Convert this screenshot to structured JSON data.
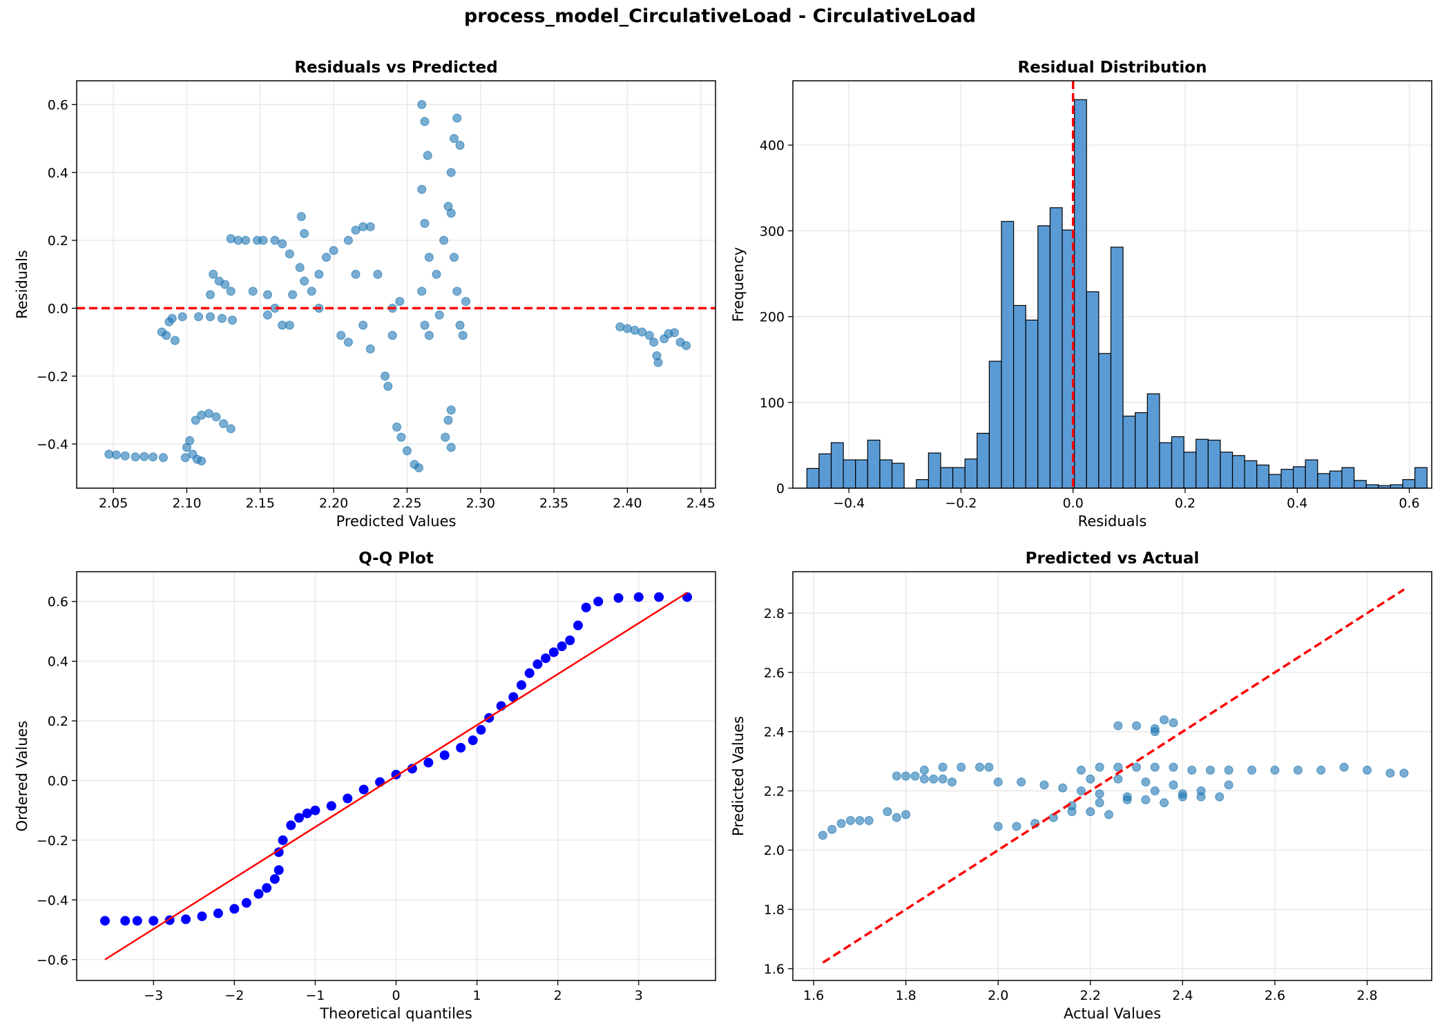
{
  "figure": {
    "title": "process_model_CirculativeLoad - CirculativeLoad"
  },
  "colors": {
    "scatter": "#1f77b4",
    "hist_fill": "#5b9bd5",
    "hist_edge": "#000000",
    "reference_line": "#ff0000",
    "qq_points": "#0000ff",
    "grid": "#e6e6e6"
  },
  "chart_data": [
    {
      "id": "residuals-vs-predicted",
      "type": "scatter",
      "title": "Residuals vs Predicted",
      "xlabel": "Predicted Values",
      "ylabel": "Residuals",
      "xlim": [
        2.025,
        2.46
      ],
      "ylim": [
        -0.53,
        0.67
      ],
      "xticks": [
        2.05,
        2.1,
        2.15,
        2.2,
        2.25,
        2.3,
        2.35,
        2.4,
        2.45
      ],
      "yticks": [
        -0.4,
        -0.2,
        0.0,
        0.2,
        0.4,
        0.6
      ],
      "grid": true,
      "reference_line": {
        "orientation": "horizontal",
        "y": 0.0,
        "style": "dashed"
      },
      "points": [
        [
          2.047,
          -0.43
        ],
        [
          2.052,
          -0.432
        ],
        [
          2.058,
          -0.435
        ],
        [
          2.065,
          -0.438
        ],
        [
          2.071,
          -0.437
        ],
        [
          2.077,
          -0.438
        ],
        [
          2.084,
          -0.44
        ],
        [
          2.083,
          -0.07
        ],
        [
          2.086,
          -0.08
        ],
        [
          2.088,
          -0.04
        ],
        [
          2.09,
          -0.03
        ],
        [
          2.092,
          -0.095
        ],
        [
          2.097,
          -0.025
        ],
        [
          2.099,
          -0.44
        ],
        [
          2.1,
          -0.41
        ],
        [
          2.102,
          -0.39
        ],
        [
          2.104,
          -0.43
        ],
        [
          2.107,
          -0.445
        ],
        [
          2.11,
          -0.45
        ],
        [
          2.106,
          -0.33
        ],
        [
          2.11,
          -0.315
        ],
        [
          2.115,
          -0.31
        ],
        [
          2.12,
          -0.32
        ],
        [
          2.125,
          -0.34
        ],
        [
          2.13,
          -0.355
        ],
        [
          2.108,
          -0.025
        ],
        [
          2.116,
          -0.025
        ],
        [
          2.124,
          -0.03
        ],
        [
          2.131,
          -0.035
        ],
        [
          2.116,
          0.04
        ],
        [
          2.118,
          0.1
        ],
        [
          2.122,
          0.08
        ],
        [
          2.126,
          0.07
        ],
        [
          2.13,
          0.05
        ],
        [
          2.13,
          0.205
        ],
        [
          2.135,
          0.2
        ],
        [
          2.14,
          0.2
        ],
        [
          2.145,
          0.05
        ],
        [
          2.148,
          0.2
        ],
        [
          2.152,
          0.2
        ],
        [
          2.155,
          -0.02
        ],
        [
          2.16,
          0.2
        ],
        [
          2.165,
          0.19
        ],
        [
          2.17,
          0.16
        ],
        [
          2.172,
          0.04
        ],
        [
          2.155,
          0.04
        ],
        [
          2.16,
          0.0
        ],
        [
          2.165,
          -0.05
        ],
        [
          2.17,
          -0.05
        ],
        [
          2.178,
          0.27
        ],
        [
          2.18,
          0.22
        ],
        [
          2.177,
          0.12
        ],
        [
          2.18,
          0.08
        ],
        [
          2.185,
          0.05
        ],
        [
          2.19,
          0.1
        ],
        [
          2.19,
          0.0
        ],
        [
          2.195,
          0.15
        ],
        [
          2.2,
          0.17
        ],
        [
          2.205,
          -0.08
        ],
        [
          2.21,
          0.2
        ],
        [
          2.215,
          0.23
        ],
        [
          2.22,
          0.24
        ],
        [
          2.225,
          0.24
        ],
        [
          2.21,
          -0.1
        ],
        [
          2.215,
          0.1
        ],
        [
          2.22,
          -0.05
        ],
        [
          2.225,
          -0.12
        ],
        [
          2.23,
          0.1
        ],
        [
          2.235,
          -0.2
        ],
        [
          2.237,
          -0.23
        ],
        [
          2.24,
          0.0
        ],
        [
          2.24,
          -0.08
        ],
        [
          2.245,
          0.02
        ],
        [
          2.25,
          -0.42
        ],
        [
          2.255,
          -0.46
        ],
        [
          2.258,
          -0.47
        ],
        [
          2.243,
          -0.35
        ],
        [
          2.246,
          -0.38
        ],
        [
          2.26,
          0.6
        ],
        [
          2.262,
          0.55
        ],
        [
          2.264,
          0.45
        ],
        [
          2.26,
          0.35
        ],
        [
          2.262,
          0.25
        ],
        [
          2.265,
          0.15
        ],
        [
          2.26,
          0.05
        ],
        [
          2.262,
          -0.05
        ],
        [
          2.265,
          -0.08
        ],
        [
          2.27,
          0.1
        ],
        [
          2.272,
          -0.02
        ],
        [
          2.275,
          0.2
        ],
        [
          2.278,
          0.3
        ],
        [
          2.28,
          0.4
        ],
        [
          2.282,
          0.5
        ],
        [
          2.284,
          0.56
        ],
        [
          2.286,
          0.48
        ],
        [
          2.28,
          0.28
        ],
        [
          2.282,
          0.15
        ],
        [
          2.284,
          0.05
        ],
        [
          2.286,
          -0.05
        ],
        [
          2.288,
          -0.08
        ],
        [
          2.29,
          0.02
        ],
        [
          2.276,
          -0.38
        ],
        [
          2.278,
          -0.33
        ],
        [
          2.28,
          -0.3
        ],
        [
          2.28,
          -0.41
        ],
        [
          2.395,
          -0.055
        ],
        [
          2.4,
          -0.06
        ],
        [
          2.405,
          -0.065
        ],
        [
          2.41,
          -0.07
        ],
        [
          2.415,
          -0.08
        ],
        [
          2.418,
          -0.1
        ],
        [
          2.42,
          -0.14
        ],
        [
          2.421,
          -0.16
        ],
        [
          2.425,
          -0.09
        ],
        [
          2.428,
          -0.075
        ],
        [
          2.432,
          -0.072
        ],
        [
          2.436,
          -0.1
        ],
        [
          2.44,
          -0.11
        ]
      ]
    },
    {
      "id": "residual-distribution",
      "type": "histogram",
      "title": "Residual Distribution",
      "xlabel": "Residuals",
      "ylabel": "Frequency",
      "xlim": [
        -0.5,
        0.64
      ],
      "ylim": [
        0,
        475
      ],
      "xticks": [
        -0.4,
        -0.2,
        0.0,
        0.2,
        0.4,
        0.6
      ],
      "yticks": [
        0,
        100,
        200,
        300,
        400
      ],
      "grid": true,
      "reference_line": {
        "orientation": "vertical",
        "x": 0.0,
        "style": "dashed"
      },
      "bin_start": -0.475,
      "bin_width": 0.0217,
      "counts": [
        23,
        40,
        53,
        33,
        33,
        56,
        33,
        29,
        0,
        10,
        41,
        24,
        24,
        34,
        64,
        148,
        311,
        213,
        196,
        306,
        327,
        301,
        453,
        229,
        157,
        281,
        84,
        88,
        110,
        53,
        60,
        42,
        57,
        56,
        42,
        38,
        32,
        27,
        16,
        22,
        25,
        33,
        17,
        20,
        24,
        9,
        4,
        3,
        4,
        10,
        24
      ]
    },
    {
      "id": "qq-plot",
      "type": "scatter",
      "title": "Q-Q Plot",
      "xlabel": "Theoretical quantiles",
      "ylabel": "Ordered Values",
      "xlim": [
        -3.95,
        3.95
      ],
      "ylim": [
        -0.67,
        0.7
      ],
      "xticks": [
        -3,
        -2,
        -1,
        0,
        1,
        2,
        3
      ],
      "yticks": [
        -0.6,
        -0.4,
        -0.2,
        0.0,
        0.2,
        0.4,
        0.6
      ],
      "grid": true,
      "fit_line": [
        [
          -3.6,
          -0.6
        ],
        [
          3.6,
          0.63
        ]
      ],
      "points": [
        [
          -3.6,
          -0.47
        ],
        [
          -3.35,
          -0.47
        ],
        [
          -3.2,
          -0.47
        ],
        [
          -3.0,
          -0.47
        ],
        [
          -2.8,
          -0.468
        ],
        [
          -2.6,
          -0.465
        ],
        [
          -2.4,
          -0.455
        ],
        [
          -2.2,
          -0.445
        ],
        [
          -2.0,
          -0.43
        ],
        [
          -1.85,
          -0.41
        ],
        [
          -1.7,
          -0.38
        ],
        [
          -1.6,
          -0.36
        ],
        [
          -1.5,
          -0.33
        ],
        [
          -1.45,
          -0.3
        ],
        [
          -1.45,
          -0.24
        ],
        [
          -1.4,
          -0.2
        ],
        [
          -1.3,
          -0.15
        ],
        [
          -1.2,
          -0.125
        ],
        [
          -1.1,
          -0.11
        ],
        [
          -1.0,
          -0.1
        ],
        [
          -0.8,
          -0.085
        ],
        [
          -0.6,
          -0.06
        ],
        [
          -0.4,
          -0.03
        ],
        [
          -0.2,
          -0.005
        ],
        [
          0.0,
          0.02
        ],
        [
          0.2,
          0.04
        ],
        [
          0.4,
          0.06
        ],
        [
          0.6,
          0.085
        ],
        [
          0.8,
          0.11
        ],
        [
          0.95,
          0.135
        ],
        [
          1.05,
          0.17
        ],
        [
          1.15,
          0.21
        ],
        [
          1.3,
          0.25
        ],
        [
          1.45,
          0.28
        ],
        [
          1.55,
          0.32
        ],
        [
          1.65,
          0.36
        ],
        [
          1.75,
          0.39
        ],
        [
          1.85,
          0.41
        ],
        [
          1.95,
          0.43
        ],
        [
          2.05,
          0.45
        ],
        [
          2.15,
          0.47
        ],
        [
          2.25,
          0.52
        ],
        [
          2.35,
          0.58
        ],
        [
          2.5,
          0.6
        ],
        [
          2.75,
          0.612
        ],
        [
          3.0,
          0.615
        ],
        [
          3.25,
          0.615
        ],
        [
          3.6,
          0.615
        ]
      ]
    },
    {
      "id": "predicted-vs-actual",
      "type": "scatter",
      "title": "Predicted vs Actual",
      "xlabel": "Actual Values",
      "ylabel": "Predicted Values",
      "xlim": [
        1.555,
        2.94
      ],
      "ylim": [
        1.56,
        2.94
      ],
      "xticks": [
        1.6,
        1.8,
        2.0,
        2.2,
        2.4,
        2.6,
        2.8
      ],
      "yticks": [
        1.6,
        1.8,
        2.0,
        2.2,
        2.4,
        2.6,
        2.8
      ],
      "grid": true,
      "reference_line": {
        "from": [
          1.62,
          1.62
        ],
        "to": [
          2.88,
          2.88
        ],
        "style": "dashed"
      },
      "points": [
        [
          1.62,
          2.05
        ],
        [
          1.64,
          2.07
        ],
        [
          1.66,
          2.09
        ],
        [
          1.68,
          2.1
        ],
        [
          1.7,
          2.1
        ],
        [
          1.72,
          2.1
        ],
        [
          1.76,
          2.13
        ],
        [
          1.78,
          2.11
        ],
        [
          1.8,
          2.12
        ],
        [
          1.78,
          2.25
        ],
        [
          1.8,
          2.25
        ],
        [
          1.82,
          2.25
        ],
        [
          1.84,
          2.24
        ],
        [
          1.86,
          2.24
        ],
        [
          1.88,
          2.24
        ],
        [
          1.9,
          2.23
        ],
        [
          1.84,
          2.27
        ],
        [
          1.88,
          2.28
        ],
        [
          1.92,
          2.28
        ],
        [
          1.96,
          2.28
        ],
        [
          1.98,
          2.28
        ],
        [
          2.0,
          2.08
        ],
        [
          2.04,
          2.08
        ],
        [
          2.08,
          2.09
        ],
        [
          2.12,
          2.11
        ],
        [
          2.16,
          2.13
        ],
        [
          2.0,
          2.23
        ],
        [
          2.05,
          2.23
        ],
        [
          2.1,
          2.22
        ],
        [
          2.14,
          2.21
        ],
        [
          2.18,
          2.2
        ],
        [
          2.22,
          2.19
        ],
        [
          2.16,
          2.15
        ],
        [
          2.2,
          2.13
        ],
        [
          2.24,
          2.12
        ],
        [
          2.28,
          2.17
        ],
        [
          2.32,
          2.17
        ],
        [
          2.36,
          2.16
        ],
        [
          2.4,
          2.18
        ],
        [
          2.44,
          2.18
        ],
        [
          2.48,
          2.18
        ],
        [
          2.18,
          2.27
        ],
        [
          2.22,
          2.28
        ],
        [
          2.26,
          2.28
        ],
        [
          2.3,
          2.28
        ],
        [
          2.34,
          2.28
        ],
        [
          2.38,
          2.28
        ],
        [
          2.42,
          2.27
        ],
        [
          2.46,
          2.27
        ],
        [
          2.5,
          2.27
        ],
        [
          2.55,
          2.27
        ],
        [
          2.6,
          2.27
        ],
        [
          2.65,
          2.27
        ],
        [
          2.7,
          2.27
        ],
        [
          2.75,
          2.28
        ],
        [
          2.8,
          2.27
        ],
        [
          2.85,
          2.26
        ],
        [
          2.88,
          2.26
        ],
        [
          2.2,
          2.24
        ],
        [
          2.26,
          2.24
        ],
        [
          2.32,
          2.23
        ],
        [
          2.38,
          2.22
        ],
        [
          2.44,
          2.2
        ],
        [
          2.5,
          2.22
        ],
        [
          2.22,
          2.16
        ],
        [
          2.28,
          2.18
        ],
        [
          2.34,
          2.2
        ],
        [
          2.4,
          2.19
        ],
        [
          2.26,
          2.42
        ],
        [
          2.3,
          2.42
        ],
        [
          2.34,
          2.41
        ],
        [
          2.36,
          2.44
        ],
        [
          2.38,
          2.43
        ],
        [
          2.34,
          2.4
        ]
      ]
    }
  ]
}
